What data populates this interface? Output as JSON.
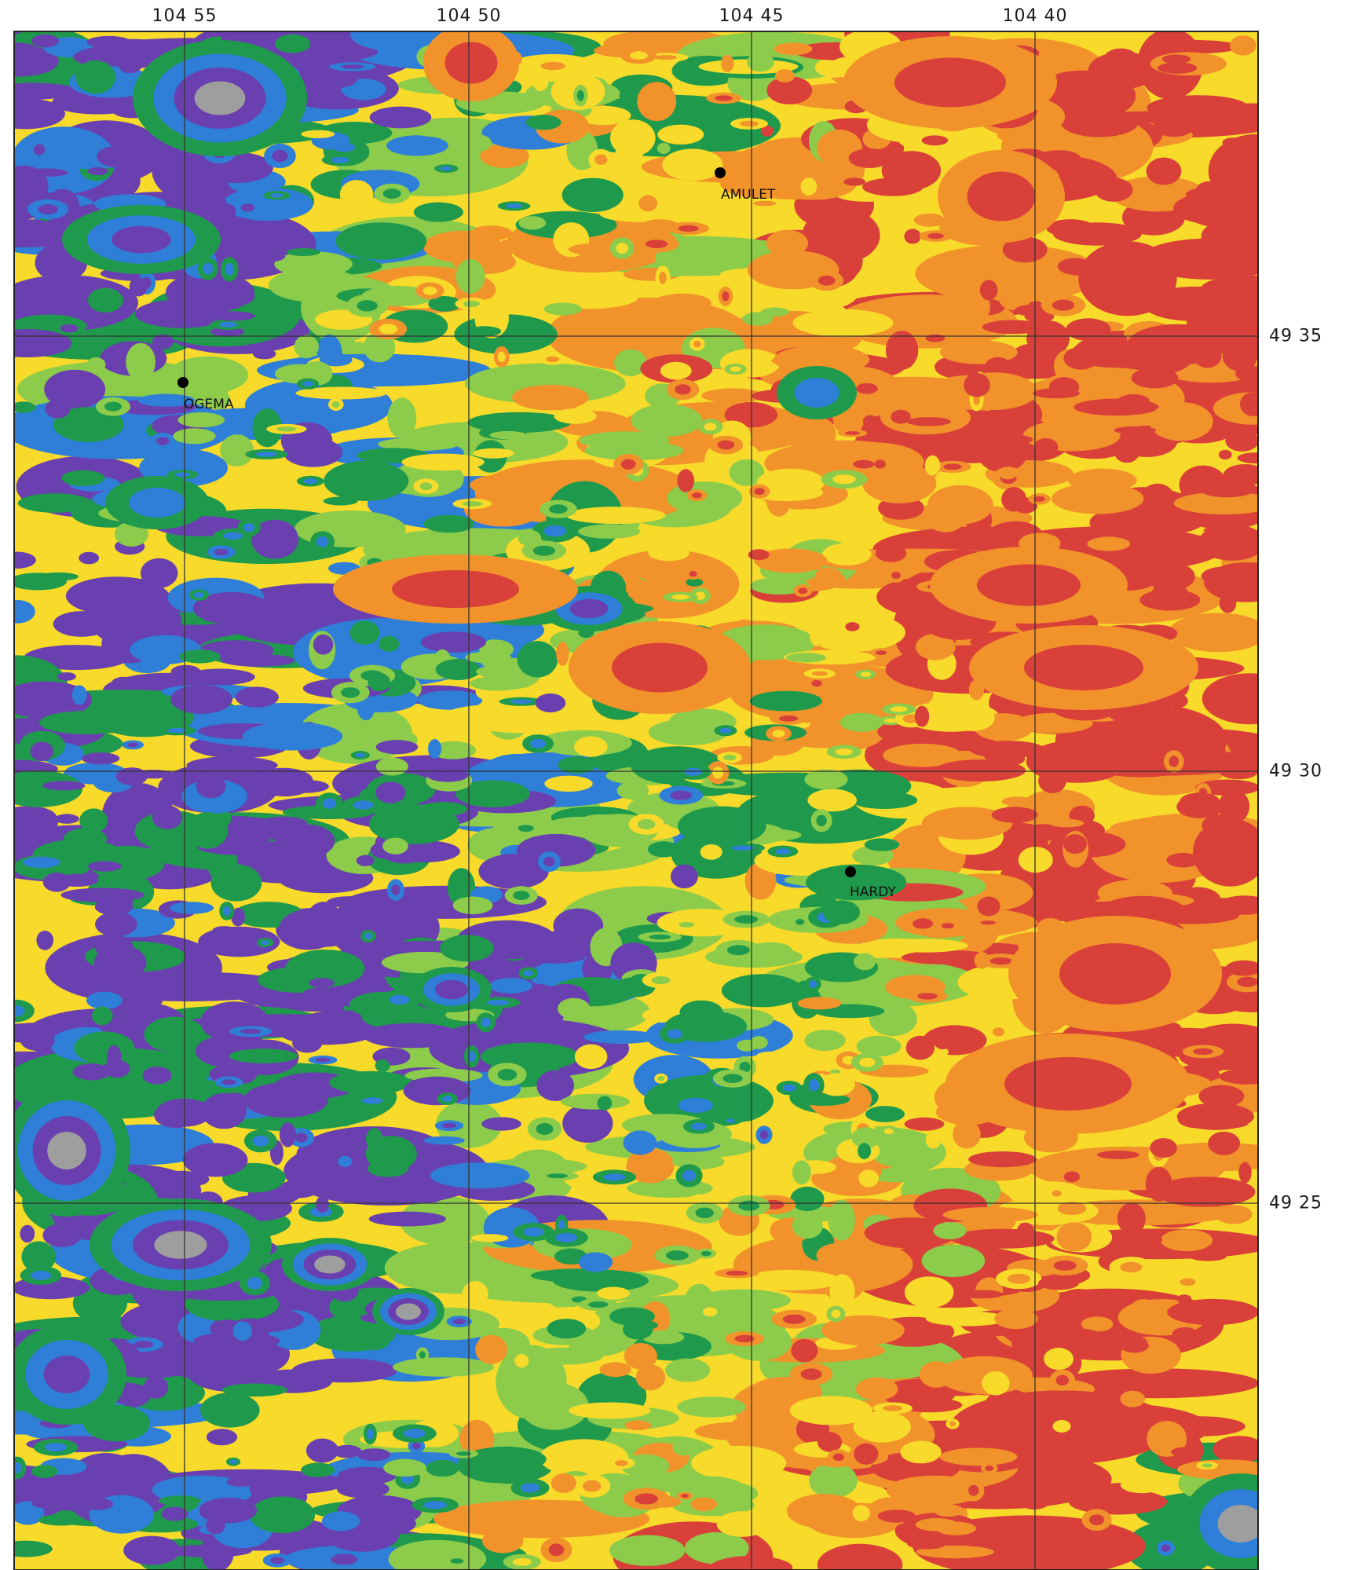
{
  "map": {
    "longitude_labels": [
      "104 55",
      "104 50",
      "104 45",
      "104 40"
    ],
    "latitude_labels": [
      "49 35",
      "49 30",
      "49 25"
    ],
    "places": [
      {
        "id": "amulet",
        "name": "AMULET"
      },
      {
        "id": "ogema",
        "name": "OGEMA"
      },
      {
        "id": "hardy",
        "name": "HARDY"
      }
    ],
    "color_classes": [
      "#9e9e9e",
      "#6a3fb0",
      "#2f7fd8",
      "#1f9a4c",
      "#8ccc4a",
      "#f7da2a",
      "#f2922b",
      "#d9403a"
    ]
  }
}
